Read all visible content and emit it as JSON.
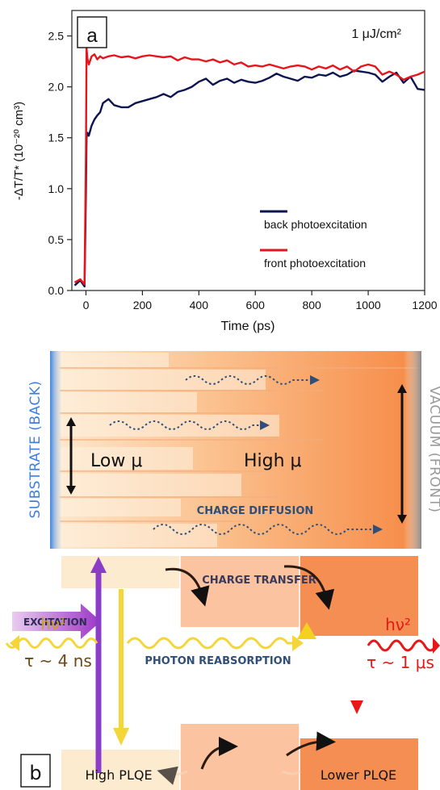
{
  "chart_data": {
    "type": "line",
    "panel_label": "a",
    "annotation": "1 μJ/cm²",
    "xlabel": "Time (ps)",
    "ylabel": "-ΔT/T* (10⁻²⁰ cm³)",
    "xlim": [
      -50,
      1200
    ],
    "ylim": [
      0,
      2.75
    ],
    "x_ticks": [
      0,
      200,
      400,
      600,
      800,
      1000,
      1200
    ],
    "y_ticks": [
      0.0,
      0.5,
      1.0,
      1.5,
      2.0,
      2.5
    ],
    "y_tick_labels": [
      "0.0",
      "0.5",
      "1.0",
      "1.5",
      "2.0",
      "2.5"
    ],
    "grid": false,
    "legend_position": "bottom-right",
    "series": [
      {
        "name": "back photoexcitation",
        "color": "#0c1450",
        "x": [
          -40,
          -20,
          -5,
          0,
          2,
          5,
          10,
          20,
          30,
          40,
          50,
          60,
          80,
          100,
          125,
          150,
          175,
          200,
          225,
          250,
          275,
          300,
          325,
          350,
          375,
          400,
          425,
          450,
          475,
          500,
          525,
          550,
          575,
          600,
          625,
          650,
          675,
          700,
          725,
          750,
          775,
          800,
          825,
          850,
          875,
          900,
          925,
          950,
          975,
          1000,
          1025,
          1050,
          1075,
          1100,
          1125,
          1150,
          1175,
          1200
        ],
        "y": [
          0.05,
          0.1,
          0.04,
          1.0,
          1.5,
          1.55,
          1.52,
          1.62,
          1.68,
          1.72,
          1.75,
          1.84,
          1.88,
          1.82,
          1.8,
          1.8,
          1.84,
          1.86,
          1.88,
          1.9,
          1.93,
          1.9,
          1.95,
          1.97,
          2.0,
          2.05,
          2.08,
          2.02,
          2.06,
          2.08,
          2.04,
          2.07,
          2.05,
          2.04,
          2.06,
          2.09,
          2.13,
          2.1,
          2.08,
          2.06,
          2.1,
          2.09,
          2.12,
          2.11,
          2.14,
          2.1,
          2.12,
          2.16,
          2.15,
          2.14,
          2.12,
          2.05,
          2.1,
          2.14,
          2.04,
          2.1,
          1.98,
          1.97
        ]
      },
      {
        "name": "front photoexcitation",
        "color": "#e8141b",
        "x": [
          -40,
          -20,
          -5,
          0,
          2,
          5,
          10,
          20,
          30,
          40,
          50,
          60,
          80,
          100,
          125,
          150,
          175,
          200,
          225,
          250,
          275,
          300,
          325,
          350,
          375,
          400,
          425,
          450,
          475,
          500,
          525,
          550,
          575,
          600,
          625,
          650,
          675,
          700,
          725,
          750,
          775,
          800,
          825,
          850,
          875,
          900,
          925,
          950,
          975,
          1000,
          1025,
          1050,
          1075,
          1100,
          1125,
          1150,
          1175,
          1200
        ],
        "y": [
          0.08,
          0.11,
          0.06,
          1.4,
          2.38,
          2.28,
          2.22,
          2.3,
          2.32,
          2.27,
          2.3,
          2.28,
          2.3,
          2.31,
          2.29,
          2.3,
          2.28,
          2.3,
          2.31,
          2.3,
          2.29,
          2.3,
          2.26,
          2.29,
          2.27,
          2.27,
          2.25,
          2.27,
          2.24,
          2.26,
          2.22,
          2.24,
          2.2,
          2.21,
          2.2,
          2.22,
          2.2,
          2.18,
          2.2,
          2.21,
          2.2,
          2.17,
          2.2,
          2.18,
          2.21,
          2.17,
          2.2,
          2.15,
          2.2,
          2.22,
          2.2,
          2.12,
          2.15,
          2.12,
          2.07,
          2.1,
          2.12,
          2.15
        ]
      }
    ]
  },
  "diagram": {
    "panel_label": "b",
    "side_left": "SUBSTRATE (BACK)",
    "side_right": "VACUUM (FRONT)",
    "mobility_low": "Low μ",
    "mobility_high": "High μ",
    "charge_diffusion": "CHARGE DIFFUSION",
    "charge_transfer": "CHARGE TRANSFER",
    "excitation": "EXCITATION",
    "photon_reabsorption": "PHOTON REABSORPTION",
    "hv1": "hν¹",
    "tau1": "τ ~ 4 ns",
    "hv2": "hν²",
    "tau2": "τ ~ 1 μs",
    "high_plqe": "High PLQE",
    "lower_plqe": "Lower PLQE"
  }
}
